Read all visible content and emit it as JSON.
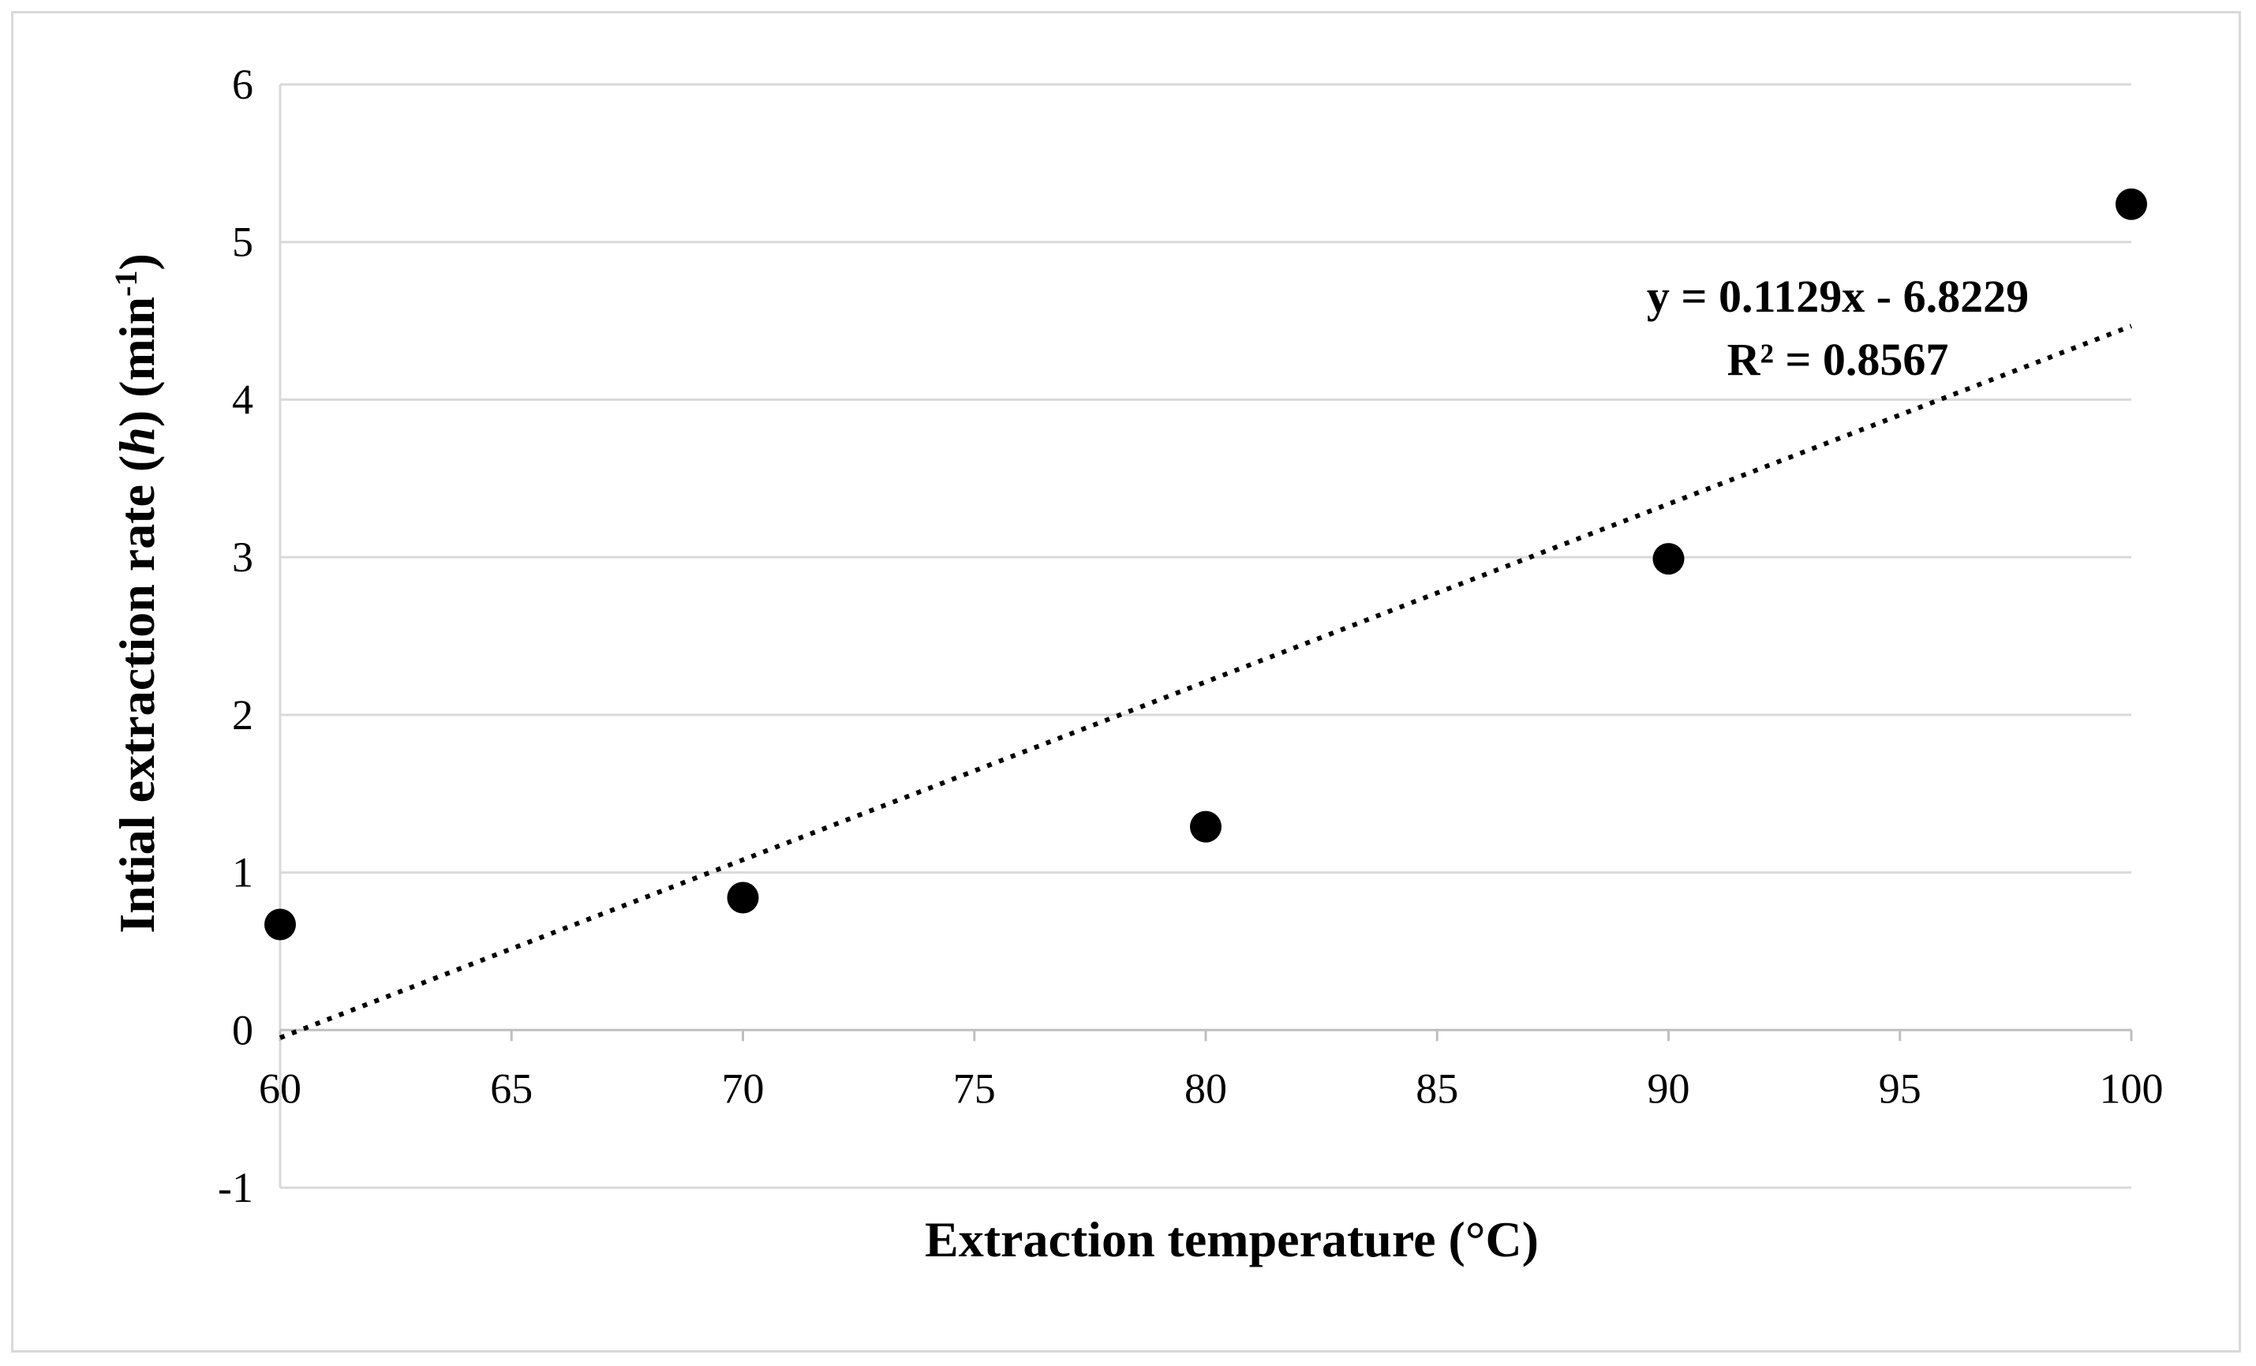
{
  "chart_data": {
    "type": "scatter",
    "title": "",
    "xlabel": "Extraction temperature (°C)",
    "ylabel": {
      "prefix": "Intial extraction rate (",
      "italic": "h",
      "mid": ") (min",
      "sup": "-1",
      "suffix": ")"
    },
    "xlim": [
      60,
      100
    ],
    "ylim": [
      -1,
      6
    ],
    "xticks": [
      60,
      65,
      70,
      75,
      80,
      85,
      90,
      95,
      100
    ],
    "yticks": [
      -1,
      0,
      1,
      2,
      3,
      4,
      5,
      6
    ],
    "grid": "horizontal",
    "series": [
      {
        "name": "Initial extraction rate",
        "x": [
          60,
          70,
          80,
          90,
          100
        ],
        "y": [
          0.67,
          0.84,
          1.29,
          2.99,
          5.24
        ],
        "marker": "circle",
        "color": "#000000"
      }
    ],
    "trendline": {
      "type": "linear",
      "slope": 0.1129,
      "intercept": -6.8229,
      "style": "dotted",
      "color": "#000000",
      "equation": "y = 0.1129x - 6.8229",
      "r_squared": "R² = 0.8567"
    }
  }
}
